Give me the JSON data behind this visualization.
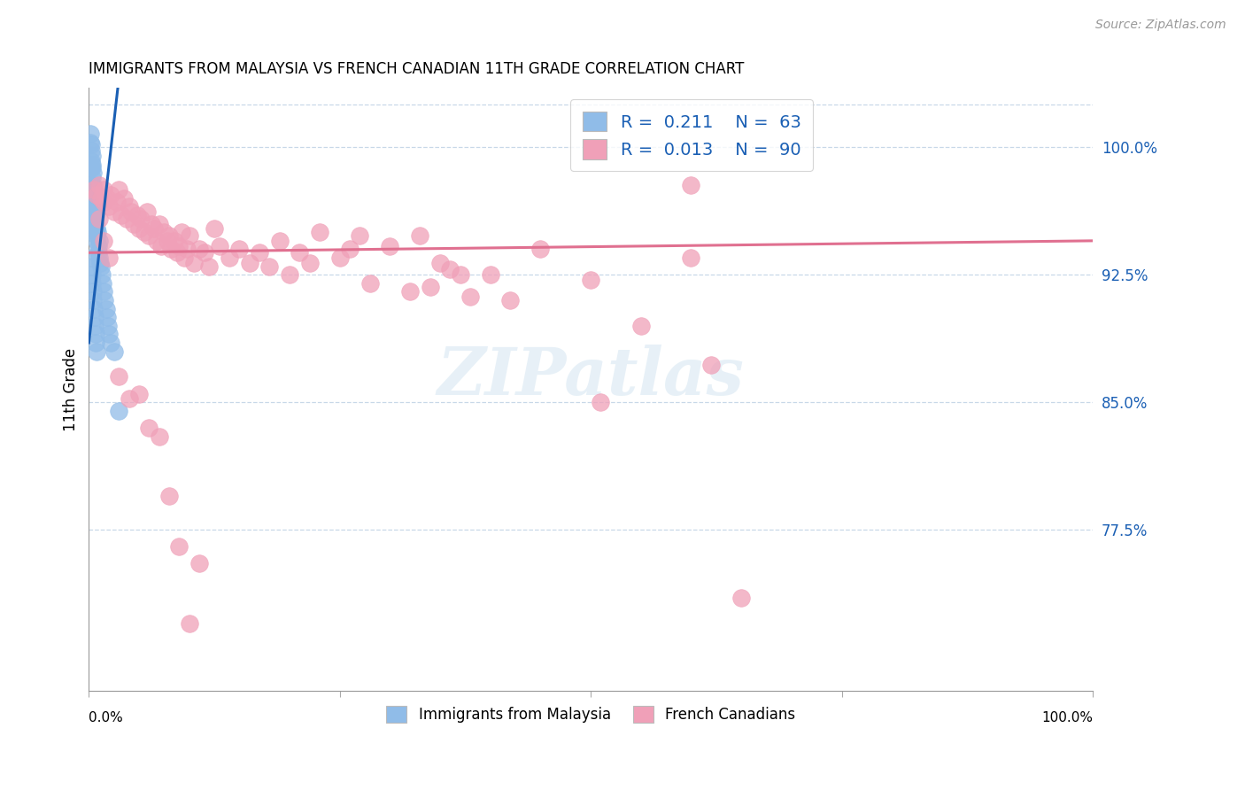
{
  "title": "IMMIGRANTS FROM MALAYSIA VS FRENCH CANADIAN 11TH GRADE CORRELATION CHART",
  "source": "Source: ZipAtlas.com",
  "ylabel": "11th Grade",
  "right_yticks": [
    100.0,
    92.5,
    85.0,
    77.5
  ],
  "xlim": [
    0.0,
    100.0
  ],
  "ylim": [
    68.0,
    103.5
  ],
  "legend_blue_R": "0.211",
  "legend_blue_N": "63",
  "legend_pink_R": "0.013",
  "legend_pink_N": "90",
  "blue_color": "#90bce8",
  "pink_color": "#f0a0b8",
  "blue_line_color": "#1a5fb4",
  "pink_line_color": "#e07090",
  "legend_text_color": "#1a5fb4",
  "right_label_color": "#1a5fb4",
  "grid_color": "#c8d8e8",
  "background_color": "#ffffff",
  "watermark_text": "ZIPatlas",
  "blue_line_x0": 0.0,
  "blue_line_y0": 88.5,
  "blue_line_x1": 2.5,
  "blue_line_y1": 101.5,
  "pink_line_x0": 0.0,
  "pink_line_y0": 93.8,
  "pink_line_x1": 100.0,
  "pink_line_y1": 94.5,
  "blue_x": [
    0.15,
    0.18,
    0.2,
    0.22,
    0.25,
    0.25,
    0.28,
    0.3,
    0.3,
    0.32,
    0.35,
    0.35,
    0.38,
    0.4,
    0.4,
    0.42,
    0.45,
    0.45,
    0.48,
    0.5,
    0.5,
    0.52,
    0.55,
    0.55,
    0.58,
    0.6,
    0.62,
    0.65,
    0.68,
    0.7,
    0.72,
    0.75,
    0.8,
    0.85,
    0.9,
    0.95,
    1.0,
    1.05,
    1.1,
    1.2,
    1.3,
    1.4,
    1.5,
    1.6,
    1.7,
    1.8,
    1.9,
    2.0,
    2.2,
    2.5,
    3.0,
    0.2,
    0.25,
    0.3,
    0.35,
    0.4,
    0.45,
    0.5,
    0.55,
    0.6,
    0.65,
    0.7,
    0.75
  ],
  "blue_y": [
    100.8,
    100.3,
    99.8,
    99.2,
    98.8,
    100.2,
    99.5,
    98.8,
    97.8,
    98.2,
    97.5,
    99.0,
    97.0,
    98.5,
    96.5,
    97.8,
    97.0,
    96.0,
    96.5,
    97.2,
    95.8,
    96.8,
    96.2,
    95.5,
    95.8,
    96.5,
    95.2,
    95.5,
    95.0,
    96.0,
    94.8,
    95.2,
    94.5,
    95.0,
    94.2,
    93.8,
    94.5,
    93.5,
    93.2,
    93.0,
    92.5,
    92.0,
    91.5,
    91.0,
    90.5,
    90.0,
    89.5,
    89.0,
    88.5,
    88.0,
    84.5,
    93.5,
    93.0,
    92.5,
    92.0,
    91.5,
    91.0,
    90.5,
    90.0,
    89.5,
    89.0,
    88.5,
    88.0
  ],
  "pink_x": [
    0.5,
    0.8,
    1.0,
    1.2,
    1.5,
    1.5,
    1.8,
    2.0,
    2.2,
    2.5,
    2.8,
    3.0,
    3.2,
    3.5,
    3.8,
    4.0,
    4.2,
    4.5,
    4.8,
    5.0,
    5.2,
    5.5,
    5.8,
    6.0,
    6.2,
    6.5,
    6.8,
    7.0,
    7.2,
    7.5,
    7.8,
    8.0,
    8.2,
    8.5,
    8.8,
    9.0,
    9.2,
    9.5,
    9.8,
    10.0,
    10.5,
    11.0,
    11.5,
    12.0,
    12.5,
    13.0,
    14.0,
    15.0,
    16.0,
    17.0,
    18.0,
    19.0,
    20.0,
    21.0,
    22.0,
    23.0,
    25.0,
    26.0,
    27.0,
    28.0,
    30.0,
    32.0,
    33.0,
    34.0,
    35.0,
    36.0,
    37.0,
    38.0,
    40.0,
    42.0,
    45.0,
    50.0,
    51.0,
    55.0,
    60.0,
    62.0,
    65.0,
    1.0,
    1.5,
    2.0,
    3.0,
    4.0,
    5.0,
    6.0,
    7.0,
    8.0,
    9.0,
    10.0,
    11.0,
    60.0
  ],
  "pink_y": [
    97.5,
    97.2,
    97.8,
    97.0,
    97.5,
    96.8,
    97.0,
    96.5,
    97.2,
    96.2,
    96.8,
    97.5,
    96.0,
    97.0,
    95.8,
    96.5,
    96.2,
    95.5,
    96.0,
    95.2,
    95.8,
    95.0,
    96.2,
    94.8,
    95.5,
    95.2,
    94.5,
    95.5,
    94.2,
    95.0,
    94.5,
    94.8,
    94.0,
    94.5,
    93.8,
    94.2,
    95.0,
    93.5,
    94.0,
    94.8,
    93.2,
    94.0,
    93.8,
    93.0,
    95.2,
    94.2,
    93.5,
    94.0,
    93.2,
    93.8,
    93.0,
    94.5,
    92.5,
    93.8,
    93.2,
    95.0,
    93.5,
    94.0,
    94.8,
    92.0,
    94.2,
    91.5,
    94.8,
    91.8,
    93.2,
    92.8,
    92.5,
    91.2,
    92.5,
    91.0,
    94.0,
    92.2,
    85.0,
    89.5,
    93.5,
    87.2,
    73.5,
    95.8,
    94.5,
    93.5,
    86.5,
    85.2,
    85.5,
    83.5,
    83.0,
    79.5,
    76.5,
    72.0,
    75.5,
    97.8
  ]
}
